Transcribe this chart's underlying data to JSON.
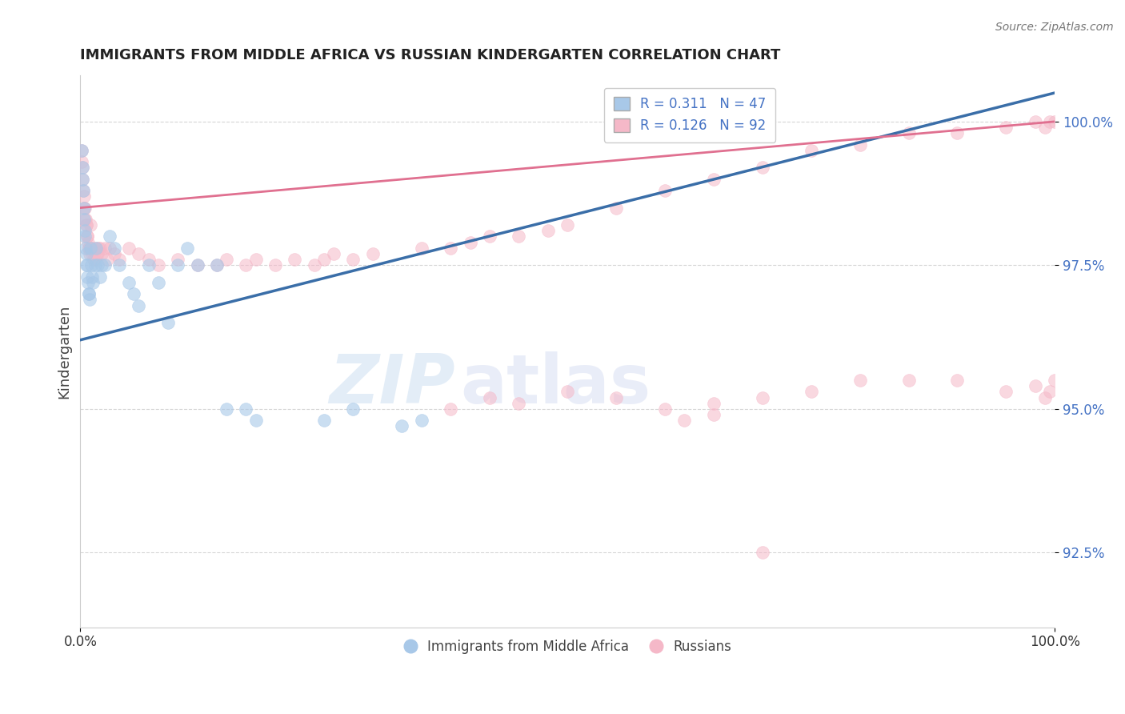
{
  "title": "IMMIGRANTS FROM MIDDLE AFRICA VS RUSSIAN KINDERGARTEN CORRELATION CHART",
  "source_text": "Source: ZipAtlas.com",
  "ylabel": "Kindergarten",
  "xlim": [
    0.0,
    100.0
  ],
  "ylim": [
    91.2,
    100.8
  ],
  "blue_R": 0.311,
  "blue_N": 47,
  "pink_R": 0.126,
  "pink_N": 92,
  "blue_color": "#A8C8E8",
  "pink_color": "#F5B8C8",
  "blue_line_color": "#3A6EA8",
  "pink_line_color": "#E07090",
  "watermark_color": "#C8DCF0",
  "watermark_color2": "#D0D8F0",
  "y_ticks": [
    92.5,
    95.0,
    97.5,
    100.0
  ],
  "blue_trend_x0": 0.0,
  "blue_trend_y0": 96.2,
  "blue_trend_x1": 100.0,
  "blue_trend_y1": 100.5,
  "pink_trend_x0": 0.0,
  "pink_trend_y0": 98.5,
  "pink_trend_x1": 100.0,
  "pink_trend_y1": 100.0,
  "blue_scatter_x": [
    0.15,
    0.2,
    0.25,
    0.3,
    0.35,
    0.4,
    0.45,
    0.5,
    0.55,
    0.6,
    0.65,
    0.7,
    0.75,
    0.8,
    0.85,
    0.9,
    0.95,
    1.0,
    1.1,
    1.2,
    1.3,
    1.5,
    1.6,
    1.8,
    2.0,
    2.2,
    2.5,
    3.0,
    3.5,
    4.0,
    5.0,
    5.5,
    6.0,
    7.0,
    8.0,
    9.0,
    10.0,
    11.0,
    12.0,
    14.0,
    15.0,
    17.0,
    18.0,
    25.0,
    28.0,
    33.0,
    35.0
  ],
  "blue_scatter_y": [
    99.5,
    99.2,
    99.0,
    98.8,
    98.5,
    98.3,
    98.1,
    98.0,
    97.8,
    97.7,
    97.5,
    97.5,
    97.3,
    97.2,
    97.0,
    97.0,
    96.9,
    97.8,
    97.5,
    97.3,
    97.2,
    97.5,
    97.8,
    97.5,
    97.3,
    97.5,
    97.5,
    98.0,
    97.8,
    97.5,
    97.2,
    97.0,
    96.8,
    97.5,
    97.2,
    96.5,
    97.5,
    97.8,
    97.5,
    97.5,
    95.0,
    95.0,
    94.8,
    94.8,
    95.0,
    94.7,
    94.8
  ],
  "pink_scatter_x": [
    0.1,
    0.15,
    0.2,
    0.25,
    0.3,
    0.35,
    0.4,
    0.45,
    0.5,
    0.55,
    0.6,
    0.65,
    0.7,
    0.75,
    0.8,
    0.85,
    0.9,
    0.95,
    1.0,
    1.1,
    1.2,
    1.3,
    1.4,
    1.5,
    1.6,
    1.7,
    1.8,
    1.9,
    2.0,
    2.2,
    2.5,
    2.8,
    3.0,
    3.5,
    4.0,
    5.0,
    6.0,
    7.0,
    8.0,
    10.0,
    12.0,
    14.0,
    15.0,
    17.0,
    18.0,
    20.0,
    22.0,
    24.0,
    25.0,
    26.0,
    28.0,
    30.0,
    35.0,
    38.0,
    40.0,
    42.0,
    45.0,
    48.0,
    50.0,
    55.0,
    60.0,
    65.0,
    70.0,
    75.0,
    80.0,
    85.0,
    90.0,
    95.0,
    98.0,
    99.0,
    99.5,
    100.0,
    38.0,
    42.0,
    45.0,
    50.0,
    55.0,
    60.0,
    65.0,
    70.0,
    75.0,
    80.0,
    85.0,
    90.0,
    95.0,
    98.0,
    99.0,
    99.5,
    100.0,
    62.0,
    65.0,
    70.0
  ],
  "pink_scatter_y": [
    99.5,
    99.3,
    99.2,
    99.0,
    98.8,
    98.7,
    98.5,
    98.5,
    98.3,
    98.3,
    98.2,
    98.2,
    98.0,
    98.0,
    97.9,
    97.8,
    97.8,
    97.7,
    98.2,
    97.8,
    97.7,
    97.8,
    97.6,
    97.6,
    97.8,
    97.7,
    97.7,
    97.8,
    97.8,
    97.7,
    97.8,
    97.6,
    97.8,
    97.7,
    97.6,
    97.8,
    97.7,
    97.6,
    97.5,
    97.6,
    97.5,
    97.5,
    97.6,
    97.5,
    97.6,
    97.5,
    97.6,
    97.5,
    97.6,
    97.7,
    97.6,
    97.7,
    97.8,
    97.8,
    97.9,
    98.0,
    98.0,
    98.1,
    98.2,
    98.5,
    98.8,
    99.0,
    99.2,
    99.5,
    99.6,
    99.8,
    99.8,
    99.9,
    100.0,
    99.9,
    100.0,
    100.0,
    95.0,
    95.2,
    95.1,
    95.3,
    95.2,
    95.0,
    95.1,
    95.2,
    95.3,
    95.5,
    95.5,
    95.5,
    95.3,
    95.4,
    95.2,
    95.3,
    95.5,
    94.8,
    94.9,
    92.5
  ]
}
